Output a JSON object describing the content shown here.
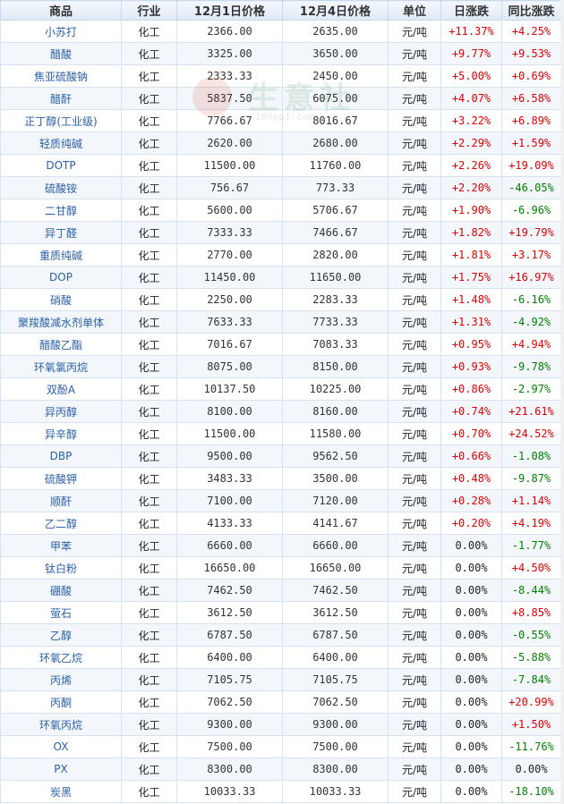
{
  "headers": [
    "商品",
    "行业",
    "12月1日价格",
    "12月4日价格",
    "单位",
    "日涨跌",
    "同比涨跌"
  ],
  "watermark": {
    "text": "生意社",
    "url": "100ppi.com"
  },
  "colors": {
    "up": "#e00000",
    "down": "#008000",
    "link": "#2a5fa8",
    "header_bg": "#dfe9f6"
  },
  "rows": [
    {
      "name": "小苏打",
      "industry": "化工",
      "price1": "2366.00",
      "price2": "2635.00",
      "unit": "元/吨",
      "daily": "+11.37%",
      "yoy": "+4.25%"
    },
    {
      "name": "醋酸",
      "industry": "化工",
      "price1": "3325.00",
      "price2": "3650.00",
      "unit": "元/吨",
      "daily": "+9.77%",
      "yoy": "+9.53%"
    },
    {
      "name": "焦亚硫酸钠",
      "industry": "化工",
      "price1": "2333.33",
      "price2": "2450.00",
      "unit": "元/吨",
      "daily": "+5.00%",
      "yoy": "+0.69%"
    },
    {
      "name": "醋酐",
      "industry": "化工",
      "price1": "5837.50",
      "price2": "6075.00",
      "unit": "元/吨",
      "daily": "+4.07%",
      "yoy": "+6.58%"
    },
    {
      "name": "正丁醇(工业级)",
      "industry": "化工",
      "price1": "7766.67",
      "price2": "8016.67",
      "unit": "元/吨",
      "daily": "+3.22%",
      "yoy": "+6.89%"
    },
    {
      "name": "轻质纯碱",
      "industry": "化工",
      "price1": "2620.00",
      "price2": "2680.00",
      "unit": "元/吨",
      "daily": "+2.29%",
      "yoy": "+1.59%"
    },
    {
      "name": "DOTP",
      "industry": "化工",
      "price1": "11500.00",
      "price2": "11760.00",
      "unit": "元/吨",
      "daily": "+2.26%",
      "yoy": "+19.09%"
    },
    {
      "name": "硫酸铵",
      "industry": "化工",
      "price1": "756.67",
      "price2": "773.33",
      "unit": "元/吨",
      "daily": "+2.20%",
      "yoy": "-46.05%"
    },
    {
      "name": "二甘醇",
      "industry": "化工",
      "price1": "5600.00",
      "price2": "5706.67",
      "unit": "元/吨",
      "daily": "+1.90%",
      "yoy": "-6.96%"
    },
    {
      "name": "异丁醛",
      "industry": "化工",
      "price1": "7333.33",
      "price2": "7466.67",
      "unit": "元/吨",
      "daily": "+1.82%",
      "yoy": "+19.79%"
    },
    {
      "name": "重质纯碱",
      "industry": "化工",
      "price1": "2770.00",
      "price2": "2820.00",
      "unit": "元/吨",
      "daily": "+1.81%",
      "yoy": "+3.17%"
    },
    {
      "name": "DOP",
      "industry": "化工",
      "price1": "11450.00",
      "price2": "11650.00",
      "unit": "元/吨",
      "daily": "+1.75%",
      "yoy": "+16.97%"
    },
    {
      "name": "硝酸",
      "industry": "化工",
      "price1": "2250.00",
      "price2": "2283.33",
      "unit": "元/吨",
      "daily": "+1.48%",
      "yoy": "-6.16%"
    },
    {
      "name": "聚羧酸减水剂单体",
      "industry": "化工",
      "price1": "7633.33",
      "price2": "7733.33",
      "unit": "元/吨",
      "daily": "+1.31%",
      "yoy": "-4.92%"
    },
    {
      "name": "醋酸乙酯",
      "industry": "化工",
      "price1": "7016.67",
      "price2": "7083.33",
      "unit": "元/吨",
      "daily": "+0.95%",
      "yoy": "+4.94%"
    },
    {
      "name": "环氧氯丙烷",
      "industry": "化工",
      "price1": "8075.00",
      "price2": "8150.00",
      "unit": "元/吨",
      "daily": "+0.93%",
      "yoy": "-9.78%"
    },
    {
      "name": "双酚A",
      "industry": "化工",
      "price1": "10137.50",
      "price2": "10225.00",
      "unit": "元/吨",
      "daily": "+0.86%",
      "yoy": "-2.97%"
    },
    {
      "name": "异丙醇",
      "industry": "化工",
      "price1": "8100.00",
      "price2": "8160.00",
      "unit": "元/吨",
      "daily": "+0.74%",
      "yoy": "+21.61%"
    },
    {
      "name": "异辛醇",
      "industry": "化工",
      "price1": "11500.00",
      "price2": "11580.00",
      "unit": "元/吨",
      "daily": "+0.70%",
      "yoy": "+24.52%"
    },
    {
      "name": "DBP",
      "industry": "化工",
      "price1": "9500.00",
      "price2": "9562.50",
      "unit": "元/吨",
      "daily": "+0.66%",
      "yoy": "-1.08%"
    },
    {
      "name": "硫酸钾",
      "industry": "化工",
      "price1": "3483.33",
      "price2": "3500.00",
      "unit": "元/吨",
      "daily": "+0.48%",
      "yoy": "-9.87%"
    },
    {
      "name": "顺酐",
      "industry": "化工",
      "price1": "7100.00",
      "price2": "7120.00",
      "unit": "元/吨",
      "daily": "+0.28%",
      "yoy": "+1.14%"
    },
    {
      "name": "乙二醇",
      "industry": "化工",
      "price1": "4133.33",
      "price2": "4141.67",
      "unit": "元/吨",
      "daily": "+0.20%",
      "yoy": "+4.19%"
    },
    {
      "name": "甲苯",
      "industry": "化工",
      "price1": "6660.00",
      "price2": "6660.00",
      "unit": "元/吨",
      "daily": "0.00%",
      "yoy": "-1.77%"
    },
    {
      "name": "钛白粉",
      "industry": "化工",
      "price1": "16650.00",
      "price2": "16650.00",
      "unit": "元/吨",
      "daily": "0.00%",
      "yoy": "+4.50%"
    },
    {
      "name": "硼酸",
      "industry": "化工",
      "price1": "7462.50",
      "price2": "7462.50",
      "unit": "元/吨",
      "daily": "0.00%",
      "yoy": "-8.44%"
    },
    {
      "name": "萤石",
      "industry": "化工",
      "price1": "3612.50",
      "price2": "3612.50",
      "unit": "元/吨",
      "daily": "0.00%",
      "yoy": "+8.85%"
    },
    {
      "name": "乙醇",
      "industry": "化工",
      "price1": "6787.50",
      "price2": "6787.50",
      "unit": "元/吨",
      "daily": "0.00%",
      "yoy": "-0.55%"
    },
    {
      "name": "环氧乙烷",
      "industry": "化工",
      "price1": "6400.00",
      "price2": "6400.00",
      "unit": "元/吨",
      "daily": "0.00%",
      "yoy": "-5.88%"
    },
    {
      "name": "丙烯",
      "industry": "化工",
      "price1": "7105.75",
      "price2": "7105.75",
      "unit": "元/吨",
      "daily": "0.00%",
      "yoy": "-7.84%"
    },
    {
      "name": "丙酮",
      "industry": "化工",
      "price1": "7062.50",
      "price2": "7062.50",
      "unit": "元/吨",
      "daily": "0.00%",
      "yoy": "+20.99%"
    },
    {
      "name": "环氧丙烷",
      "industry": "化工",
      "price1": "9300.00",
      "price2": "9300.00",
      "unit": "元/吨",
      "daily": "0.00%",
      "yoy": "+1.50%"
    },
    {
      "name": "OX",
      "industry": "化工",
      "price1": "7500.00",
      "price2": "7500.00",
      "unit": "元/吨",
      "daily": "0.00%",
      "yoy": "-11.76%"
    },
    {
      "name": "PX",
      "industry": "化工",
      "price1": "8300.00",
      "price2": "8300.00",
      "unit": "元/吨",
      "daily": "0.00%",
      "yoy": "0.00%"
    },
    {
      "name": "炭黑",
      "industry": "化工",
      "price1": "10033.33",
      "price2": "10033.33",
      "unit": "元/吨",
      "daily": "0.00%",
      "yoy": "-18.10%"
    }
  ]
}
